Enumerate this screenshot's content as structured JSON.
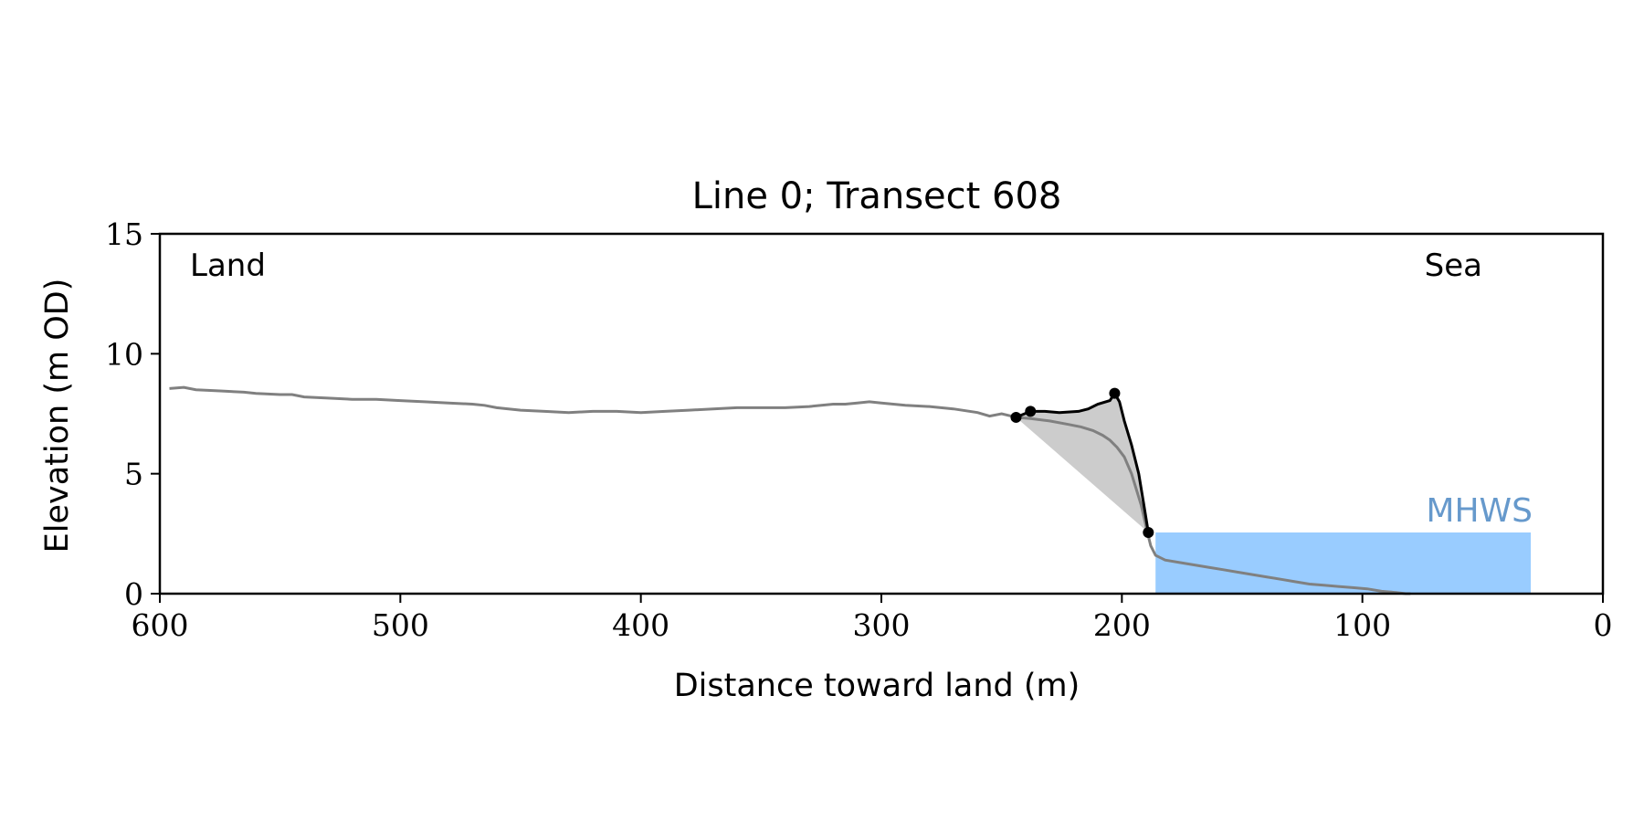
{
  "chart_data": {
    "type": "line",
    "title": "Line 0; Transect 608",
    "xlabel": "Distance toward land (m)",
    "ylabel": "Elevation (m OD)",
    "xlim": [
      600,
      0
    ],
    "ylim": [
      0,
      15
    ],
    "x_ticks": [
      600,
      500,
      400,
      300,
      200,
      100,
      0
    ],
    "y_ticks": [
      0,
      5,
      10,
      15
    ],
    "grid": false,
    "annotations": {
      "land": "Land",
      "sea": "Sea",
      "mhws": "MHWS"
    },
    "mhws": {
      "level": 2.55,
      "x_start": 186,
      "x_end": 30
    },
    "profile": {
      "x": [
        596,
        590,
        585,
        575,
        565,
        560,
        550,
        545,
        540,
        530,
        520,
        510,
        500,
        490,
        480,
        470,
        465,
        460,
        450,
        440,
        430,
        420,
        410,
        400,
        390,
        380,
        370,
        360,
        350,
        340,
        330,
        320,
        315,
        310,
        305,
        300,
        290,
        280,
        270,
        260,
        255,
        250,
        246,
        244,
        238,
        230,
        222,
        217,
        212,
        208,
        205,
        202,
        199,
        196,
        192,
        189,
        188,
        186,
        182,
        176,
        170,
        164,
        158,
        152,
        146,
        140,
        134,
        128,
        122,
        116,
        110,
        104,
        98,
        92,
        86,
        82,
        80
      ],
      "y": [
        8.55,
        8.6,
        8.5,
        8.45,
        8.4,
        8.35,
        8.3,
        8.3,
        8.2,
        8.15,
        8.1,
        8.1,
        8.05,
        8.0,
        7.95,
        7.9,
        7.85,
        7.75,
        7.65,
        7.6,
        7.55,
        7.6,
        7.6,
        7.55,
        7.6,
        7.65,
        7.7,
        7.75,
        7.75,
        7.75,
        7.8,
        7.9,
        7.9,
        7.95,
        8.0,
        7.95,
        7.85,
        7.8,
        7.7,
        7.55,
        7.4,
        7.5,
        7.4,
        7.35,
        7.3,
        7.2,
        7.05,
        6.95,
        6.8,
        6.6,
        6.4,
        6.1,
        5.7,
        5.0,
        3.7,
        2.4,
        2.0,
        1.6,
        1.4,
        1.3,
        1.2,
        1.1,
        1.0,
        0.9,
        0.8,
        0.7,
        0.6,
        0.5,
        0.4,
        0.35,
        0.3,
        0.25,
        0.2,
        0.1,
        0.05,
        0.0,
        0.0
      ]
    },
    "cliff_profile": {
      "x": [
        244,
        238,
        232,
        226,
        218,
        214,
        210,
        205,
        203,
        201,
        199,
        196,
        193,
        191,
        189
      ],
      "y": [
        7.35,
        7.6,
        7.6,
        7.55,
        7.6,
        7.7,
        7.9,
        8.05,
        8.35,
        8.0,
        7.2,
        6.2,
        5.0,
        3.8,
        2.55
      ]
    },
    "cliff_points": [
      {
        "x": 244,
        "y": 7.35
      },
      {
        "x": 238,
        "y": 7.6
      },
      {
        "x": 203,
        "y": 8.35
      },
      {
        "x": 189,
        "y": 2.55
      }
    ],
    "colors": {
      "profile": "#808080",
      "cliff_line": "#000000",
      "cliff_fill": "#cccccc",
      "mhws_fill": "#99ccff",
      "mhws_label": "#6699cc"
    }
  }
}
